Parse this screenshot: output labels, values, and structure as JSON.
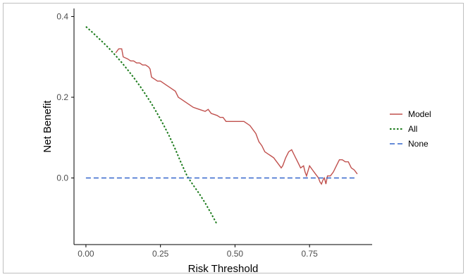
{
  "chart_data": {
    "type": "line",
    "title": "",
    "xlabel": "Risk Threshold",
    "ylabel": "Net Benefit",
    "xlim": [
      -0.04,
      0.96
    ],
    "ylim": [
      -0.165,
      0.42
    ],
    "x_ticks": [
      "0.00",
      "0.25",
      "0.50",
      "0.75"
    ],
    "x_tick_values": [
      0,
      0.25,
      0.5,
      0.75
    ],
    "y_ticks": [
      "0.0",
      "0.2",
      "0.4"
    ],
    "y_tick_values": [
      0,
      0.2,
      0.4
    ],
    "grid": false,
    "legend_position": "right",
    "series": [
      {
        "name": "Model",
        "color": "#c0504d",
        "dash": "solid",
        "x": [
          0.1,
          0.11,
          0.12,
          0.125,
          0.14,
          0.15,
          0.16,
          0.17,
          0.18,
          0.19,
          0.2,
          0.21,
          0.215,
          0.22,
          0.23,
          0.24,
          0.25,
          0.26,
          0.27,
          0.28,
          0.3,
          0.31,
          0.32,
          0.33,
          0.35,
          0.36,
          0.38,
          0.4,
          0.41,
          0.42,
          0.44,
          0.45,
          0.46,
          0.47,
          0.49,
          0.5,
          0.51,
          0.53,
          0.55,
          0.57,
          0.58,
          0.59,
          0.6,
          0.61,
          0.62,
          0.63,
          0.64,
          0.65,
          0.655,
          0.66,
          0.67,
          0.68,
          0.69,
          0.7,
          0.71,
          0.72,
          0.73,
          0.735,
          0.74,
          0.75,
          0.76,
          0.77,
          0.775,
          0.78,
          0.785,
          0.79,
          0.795,
          0.8,
          0.805,
          0.81,
          0.82,
          0.83,
          0.84,
          0.85,
          0.86,
          0.87,
          0.88,
          0.89,
          0.9,
          0.91
        ],
        "y": [
          0.31,
          0.32,
          0.32,
          0.3,
          0.295,
          0.29,
          0.29,
          0.285,
          0.285,
          0.28,
          0.28,
          0.275,
          0.27,
          0.25,
          0.245,
          0.24,
          0.24,
          0.235,
          0.23,
          0.225,
          0.215,
          0.2,
          0.195,
          0.19,
          0.18,
          0.175,
          0.17,
          0.165,
          0.17,
          0.16,
          0.155,
          0.15,
          0.15,
          0.14,
          0.14,
          0.14,
          0.14,
          0.14,
          0.13,
          0.11,
          0.09,
          0.08,
          0.065,
          0.06,
          0.055,
          0.05,
          0.04,
          0.03,
          0.025,
          0.03,
          0.05,
          0.065,
          0.07,
          0.055,
          0.04,
          0.025,
          0.03,
          0.015,
          0.005,
          0.03,
          0.02,
          0.01,
          0.005,
          0.0,
          -0.01,
          -0.015,
          -0.005,
          0.0,
          -0.015,
          0.005,
          0.005,
          0.015,
          0.03,
          0.045,
          0.045,
          0.04,
          0.04,
          0.025,
          0.02,
          0.01
        ]
      },
      {
        "name": "All",
        "color": "#1a7a1a",
        "dash": "dotted",
        "x": [
          0.0,
          0.02,
          0.04,
          0.06,
          0.08,
          0.1,
          0.12,
          0.14,
          0.16,
          0.18,
          0.2,
          0.22,
          0.24,
          0.26,
          0.28,
          0.3,
          0.32,
          0.34,
          0.36,
          0.38,
          0.4,
          0.42,
          0.44
        ],
        "y": [
          0.375,
          0.362,
          0.348,
          0.334,
          0.319,
          0.303,
          0.286,
          0.268,
          0.249,
          0.229,
          0.207,
          0.184,
          0.159,
          0.132,
          0.103,
          0.071,
          0.036,
          0.004,
          -0.018,
          -0.039,
          -0.062,
          -0.088,
          -0.115
        ]
      },
      {
        "name": "None",
        "color": "#3366cc",
        "dash": "dashed",
        "x": [
          0.0,
          0.91
        ],
        "y": [
          0.0,
          0.0
        ]
      }
    ]
  }
}
